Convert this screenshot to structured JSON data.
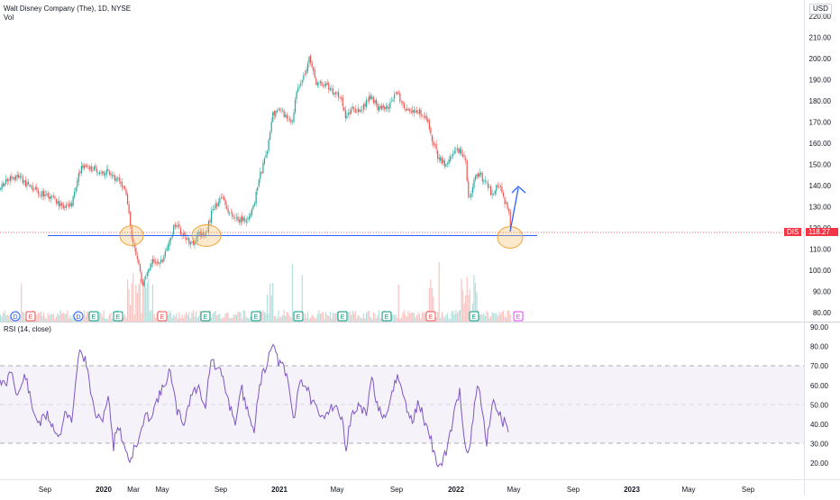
{
  "header": {
    "title": "Walt Disney Company (The), 1D, NYSE",
    "vol_label": "Vol",
    "currency": "USD"
  },
  "rsi": {
    "label": "RSI (14, close)"
  },
  "price_tag": {
    "symbol": "DIS",
    "value": "118.27"
  },
  "price_axis": {
    "ticks": [
      "220.00",
      "210.00",
      "200.00",
      "190.00",
      "180.00",
      "170.00",
      "160.00",
      "150.00",
      "140.00",
      "130.00",
      "120.00",
      "110.00",
      "100.00",
      "90.00",
      "80.00"
    ]
  },
  "rsi_axis": {
    "ticks": [
      "90.00",
      "80.00",
      "70.00",
      "60.00",
      "50.00",
      "40.00",
      "30.00",
      "20.00"
    ]
  },
  "time_axis": {
    "labels": [
      "Sep",
      "2020",
      "Mar",
      "May",
      "Sep",
      "2021",
      "May",
      "Sep",
      "2022",
      "May",
      "Sep",
      "2023",
      "May",
      "Sep"
    ]
  },
  "event_markers": [
    "D",
    "E",
    "D",
    "E",
    "E",
    "E",
    "E",
    "E",
    "E",
    "E",
    "E",
    "E",
    "E",
    "E"
  ],
  "colors": {
    "up": "#26a69a",
    "down": "#ef5350",
    "rsi_line": "#7e57c2",
    "support_line": "#2962ff",
    "highlight": "#f5c16c",
    "price_tag": "#f23645"
  }
}
